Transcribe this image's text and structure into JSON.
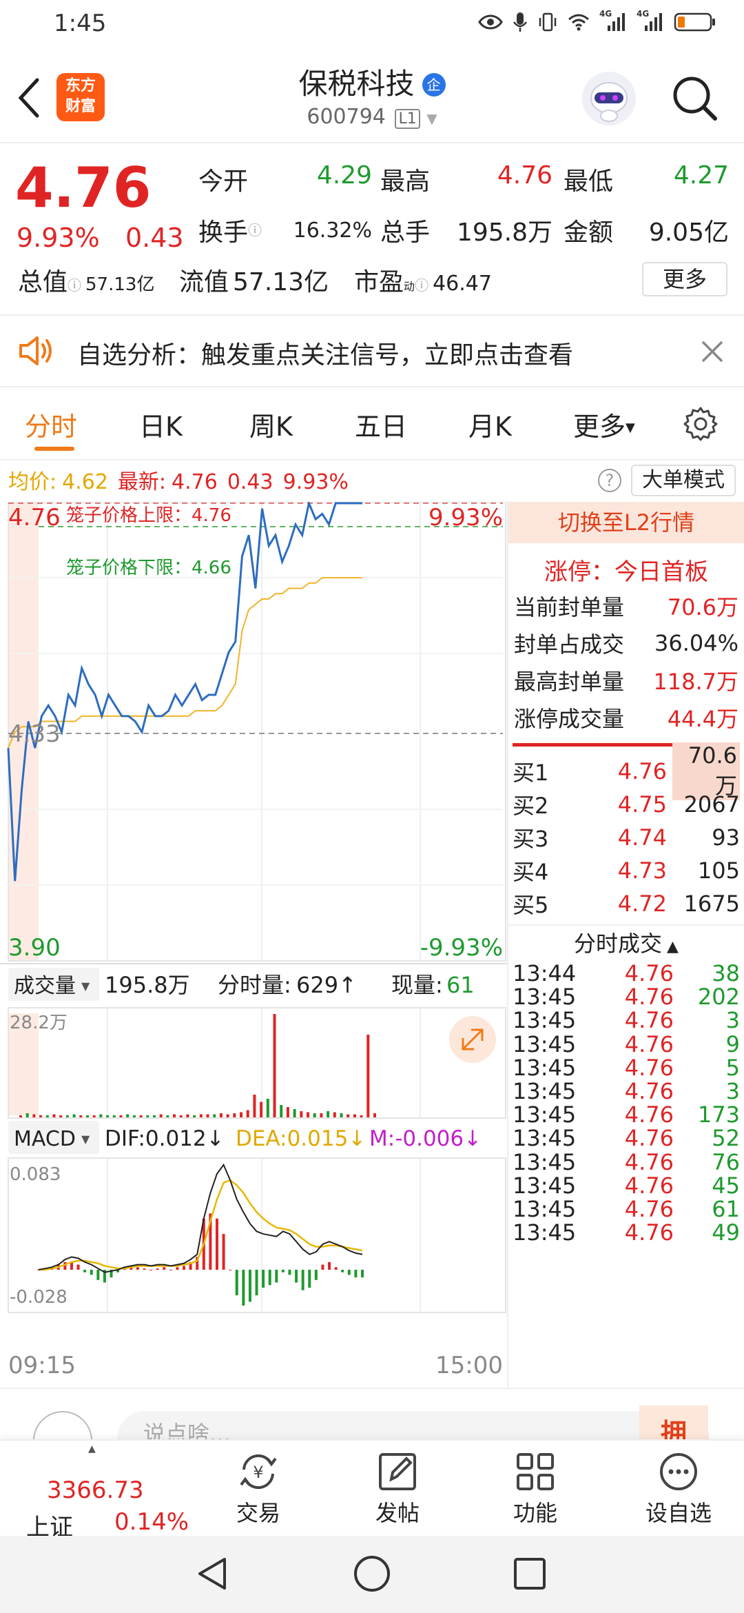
{
  "status": {
    "time": "1:45",
    "net1": "4G",
    "net2": "4G"
  },
  "header": {
    "title": "保税科技",
    "badge": "企",
    "code": "600794",
    "level": "L1",
    "logo_l1": "东方",
    "logo_l2": "财富"
  },
  "quote": {
    "price": "4.76",
    "pct": "9.93%",
    "chg": "0.43",
    "row1": [
      {
        "k": "今开",
        "v": "4.29"
      },
      {
        "k": "最高",
        "v": "4.76"
      },
      {
        "k": "最低",
        "v": "4.27"
      }
    ],
    "row2": [
      {
        "k": "换手",
        "v": "16.32%"
      },
      {
        "k": "总手",
        "v": "195.8万"
      },
      {
        "k": "金额",
        "v": "9.05亿"
      }
    ],
    "row3": [
      {
        "k": "总值",
        "v": "57.13亿"
      },
      {
        "k": "流值",
        "v": "57.13亿"
      },
      {
        "k": "市盈",
        "sup": "动",
        "v": "46.47"
      }
    ],
    "more": "更多"
  },
  "notice": {
    "text": "自选分析：触发重点关注信号，立即点击查看"
  },
  "tabs": [
    "分时",
    "日K",
    "周K",
    "五日",
    "月K",
    "更多"
  ],
  "info": {
    "avg_label": "均价:",
    "avg": "4.62",
    "latest_label": "最新:",
    "latest": "4.76",
    "chg": "0.43",
    "pct": "9.93%",
    "mode": "大单模式"
  },
  "chart_labels": {
    "top_price": "4.76",
    "top_pct": "9.93%",
    "mid_price": "4.33",
    "bot_price": "3.90",
    "bot_pct": "-9.93%",
    "cage_up": "笼子价格上限：4.76",
    "cage_down": "笼子价格下限：4.66",
    "t_start": "09:15",
    "t_end": "15:00"
  },
  "volume": {
    "label": "成交量",
    "total": "195.8万",
    "fen_label": "分时量:",
    "fen": "629↑",
    "now_label": "现量:",
    "now": "61",
    "max": "28.2万"
  },
  "macd": {
    "label": "MACD",
    "dif": "DIF:0.012↓",
    "dea": "DEA:0.015↓",
    "m": "M:-0.006↓",
    "max": "0.083",
    "min": "-0.028"
  },
  "right": {
    "switch": "切换至L2行情",
    "limit_title": "涨停：今日首板",
    "stats": [
      {
        "k": "当前封单量",
        "v": "70.6万"
      },
      {
        "k": "封单占成交",
        "v": "36.04%"
      },
      {
        "k": "最高封单量",
        "v": "118.7万"
      },
      {
        "k": "涨停成交量",
        "v": "44.4万"
      }
    ],
    "bids": [
      {
        "k": "买1",
        "p": "4.76",
        "v": "70.6万"
      },
      {
        "k": "买2",
        "p": "4.75",
        "v": "2067"
      },
      {
        "k": "买3",
        "p": "4.74",
        "v": "93"
      },
      {
        "k": "买4",
        "p": "4.73",
        "v": "105"
      },
      {
        "k": "买5",
        "p": "4.72",
        "v": "1675"
      }
    ],
    "trades_title": "分时成交",
    "trades": [
      {
        "t": "13:44",
        "p": "4.76",
        "v": "38"
      },
      {
        "t": "13:45",
        "p": "4.76",
        "v": "202"
      },
      {
        "t": "13:45",
        "p": "4.76",
        "v": "3"
      },
      {
        "t": "13:45",
        "p": "4.76",
        "v": "9"
      },
      {
        "t": "13:45",
        "p": "4.76",
        "v": "5"
      },
      {
        "t": "13:45",
        "p": "4.76",
        "v": "3"
      },
      {
        "t": "13:45",
        "p": "4.76",
        "v": "173"
      },
      {
        "t": "13:45",
        "p": "4.76",
        "v": "52"
      },
      {
        "t": "13:45",
        "p": "4.76",
        "v": "76"
      },
      {
        "t": "13:45",
        "p": "4.76",
        "v": "45"
      },
      {
        "t": "13:45",
        "p": "4.76",
        "v": "61"
      },
      {
        "t": "13:45",
        "p": "4.76",
        "v": "49"
      }
    ]
  },
  "comment": {
    "placeholder": "说点啥..."
  },
  "bottom": {
    "index_value": "3366.73",
    "index_name": "上证",
    "index_pct": "0.14%",
    "items": [
      "交易",
      "发帖",
      "功能",
      "设自选"
    ]
  },
  "chart_data": {
    "type": "line",
    "x_range": [
      "09:15",
      "15:00"
    ],
    "ylim": [
      3.9,
      4.76
    ],
    "ref_price": 4.33,
    "price_series": [
      4.3,
      4.05,
      4.22,
      4.35,
      4.3,
      4.36,
      4.38,
      4.36,
      4.33,
      4.4,
      4.38,
      4.45,
      4.42,
      4.4,
      4.36,
      4.4,
      4.38,
      4.36,
      4.36,
      4.35,
      4.33,
      4.38,
      4.36,
      4.36,
      4.37,
      4.4,
      4.38,
      4.4,
      4.42,
      4.39,
      4.4,
      4.4,
      4.44,
      4.48,
      4.5,
      4.66,
      4.7,
      4.6,
      4.75,
      4.68,
      4.7,
      4.65,
      4.68,
      4.72,
      4.7,
      4.76,
      4.73,
      4.74,
      4.72,
      4.76,
      4.76,
      4.76,
      4.76,
      4.76
    ],
    "avg_series": [
      4.3,
      4.33,
      4.34,
      4.34,
      4.34,
      4.35,
      4.35,
      4.35,
      4.35,
      4.35,
      4.35,
      4.36,
      4.36,
      4.36,
      4.36,
      4.36,
      4.36,
      4.36,
      4.36,
      4.36,
      4.36,
      4.36,
      4.36,
      4.36,
      4.36,
      4.36,
      4.36,
      4.36,
      4.37,
      4.37,
      4.37,
      4.37,
      4.38,
      4.4,
      4.42,
      4.52,
      4.56,
      4.57,
      4.58,
      4.58,
      4.59,
      4.59,
      4.6,
      4.6,
      4.6,
      4.61,
      4.61,
      4.62,
      4.62,
      4.62,
      4.62,
      4.62,
      4.62,
      4.62
    ],
    "volume_max": "28.2万",
    "volume_series": [
      0.02,
      0.04,
      0.03,
      0.02,
      0.02,
      0.03,
      0.02,
      0.02,
      0.03,
      0.02,
      0.02,
      0.02,
      0.03,
      0.02,
      0.02,
      0.02,
      0.03,
      0.02,
      0.02,
      0.02,
      0.02,
      0.03,
      0.02,
      0.03,
      0.02,
      0.03,
      0.02,
      0.03,
      0.03,
      0.03,
      0.04,
      0.03,
      0.04,
      0.05,
      0.07,
      0.22,
      0.15,
      0.18,
      1.0,
      0.12,
      0.1,
      0.08,
      0.06,
      0.05,
      0.04,
      0.04,
      0.06,
      0.05,
      0.04,
      0.03,
      0.03,
      0.02,
      0.8,
      0.04
    ],
    "macd_range": [
      -0.028,
      0.083
    ],
    "dif_series": [
      0.0,
      0.001,
      0.002,
      0.004,
      0.008,
      0.01,
      0.009,
      0.006,
      0.004,
      0.001,
      -0.002,
      -0.001,
      0.0,
      0.002,
      0.003,
      0.004,
      0.004,
      0.003,
      0.004,
      0.004,
      0.003,
      0.004,
      0.005,
      0.008,
      0.012,
      0.04,
      0.06,
      0.075,
      0.082,
      0.07,
      0.055,
      0.045,
      0.036,
      0.03,
      0.028,
      0.027,
      0.026,
      0.03,
      0.028,
      0.022,
      0.016,
      0.012,
      0.014,
      0.02,
      0.022,
      0.02,
      0.018,
      0.015,
      0.013,
      0.012
    ],
    "dea_series": [
      0.0,
      0.0,
      0.001,
      0.002,
      0.004,
      0.006,
      0.007,
      0.007,
      0.006,
      0.005,
      0.003,
      0.002,
      0.001,
      0.001,
      0.002,
      0.003,
      0.003,
      0.003,
      0.003,
      0.003,
      0.003,
      0.003,
      0.004,
      0.005,
      0.007,
      0.02,
      0.038,
      0.055,
      0.068,
      0.07,
      0.066,
      0.06,
      0.052,
      0.045,
      0.04,
      0.036,
      0.033,
      0.032,
      0.031,
      0.028,
      0.024,
      0.02,
      0.018,
      0.018,
      0.019,
      0.019,
      0.018,
      0.017,
      0.016,
      0.015
    ],
    "m_series": [
      0.0,
      0.001,
      0.002,
      0.004,
      0.006,
      0.006,
      0.004,
      -0.002,
      -0.004,
      -0.008,
      -0.01,
      -0.006,
      -0.002,
      0.002,
      0.003,
      0.002,
      0.001,
      0.0,
      0.001,
      0.002,
      0.0,
      0.002,
      0.003,
      0.006,
      0.01,
      0.04,
      0.044,
      0.04,
      0.028,
      0.0,
      -0.02,
      -0.028,
      -0.025,
      -0.02,
      -0.014,
      -0.012,
      -0.01,
      -0.002,
      -0.004,
      -0.01,
      -0.016,
      -0.014,
      -0.008,
      0.004,
      0.006,
      0.002,
      -0.002,
      -0.004,
      -0.006,
      -0.006
    ]
  }
}
